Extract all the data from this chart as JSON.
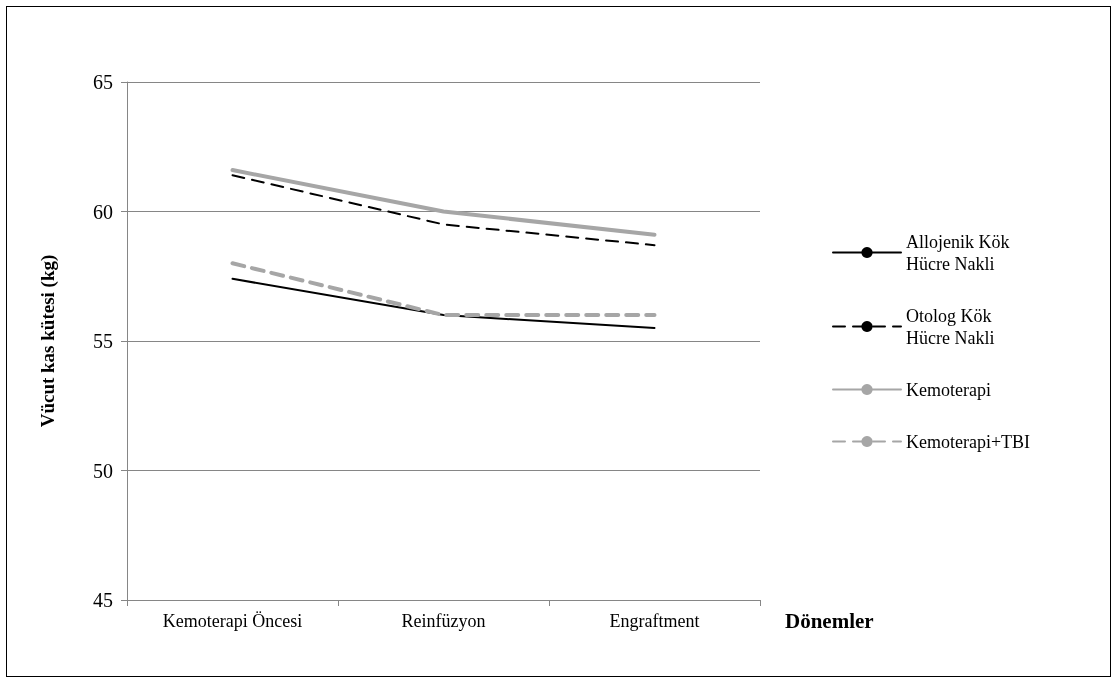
{
  "chart_data": {
    "type": "line",
    "xlabel": "Dönemler",
    "ylabel": "Vücut kas kütesi (kg)",
    "categories": [
      "Kemoterapi Öncesi",
      "Reinfüzyon",
      "Engraftment"
    ],
    "series": [
      {
        "name": "Allojenik Kök Hücre Nakli",
        "color": "#000000",
        "line_style": "solid",
        "values": [
          57.4,
          56.0,
          55.5
        ]
      },
      {
        "name": "Otolog Kök Hücre Nakli",
        "color": "#000000",
        "line_style": "dashed",
        "values": [
          61.4,
          59.5,
          58.7
        ]
      },
      {
        "name": "Kemoterapi",
        "color": "#a6a6a6",
        "line_style": "solid",
        "values": [
          61.6,
          60.0,
          59.1
        ]
      },
      {
        "name": "Kemoterapi+TBI",
        "color": "#a6a6a6",
        "line_style": "dashed",
        "values": [
          58.0,
          56.0,
          56.0
        ]
      }
    ],
    "ylim": [
      45,
      65
    ],
    "yticks": [
      45,
      50,
      55,
      60,
      65
    ],
    "grid": "y",
    "legend": "right",
    "marker": "none"
  }
}
